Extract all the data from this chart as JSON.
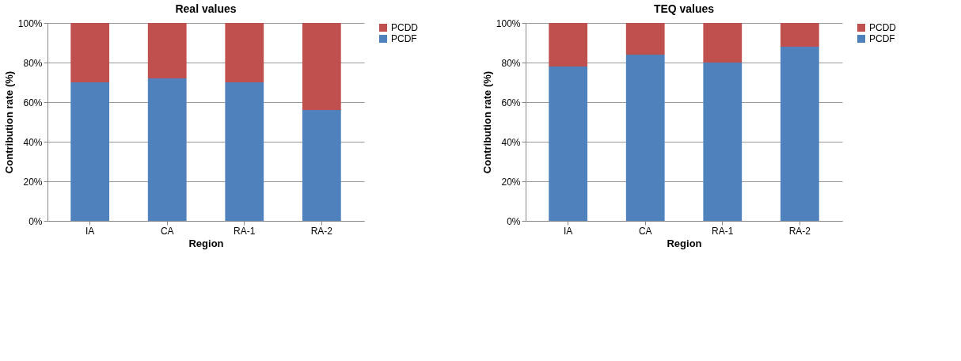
{
  "chart_data": [
    {
      "type": "bar",
      "title": "Real values",
      "xlabel": "Region",
      "ylabel": "Contribution rate (%)",
      "categories": [
        "IA",
        "CA",
        "RA-1",
        "RA-2"
      ],
      "stacked": true,
      "series": [
        {
          "name": "PCDF",
          "color": "#4f81bd",
          "values": [
            70,
            72,
            70,
            56
          ]
        },
        {
          "name": "PCDD",
          "color": "#c0504d",
          "values": [
            30,
            28,
            30,
            44
          ]
        }
      ],
      "ylim": [
        0,
        100
      ],
      "yticks": [
        {
          "value": 0,
          "label": "0%"
        },
        {
          "value": 20,
          "label": "20%"
        },
        {
          "value": 40,
          "label": "40%"
        },
        {
          "value": 60,
          "label": "60%"
        },
        {
          "value": 80,
          "label": "80%"
        },
        {
          "value": 100,
          "label": "100%"
        }
      ],
      "grid": "y",
      "legend": "right"
    },
    {
      "type": "bar",
      "title": "TEQ values",
      "xlabel": "Region",
      "ylabel": "Contribution rate (%)",
      "categories": [
        "IA",
        "CA",
        "RA-1",
        "RA-2"
      ],
      "stacked": true,
      "series": [
        {
          "name": "PCDF",
          "color": "#4f81bd",
          "values": [
            78,
            84,
            80,
            88
          ]
        },
        {
          "name": "PCDD",
          "color": "#c0504d",
          "values": [
            22,
            16,
            20,
            12
          ]
        }
      ],
      "ylim": [
        0,
        100
      ],
      "yticks": [
        {
          "value": 0,
          "label": "0%"
        },
        {
          "value": 20,
          "label": "20%"
        },
        {
          "value": 40,
          "label": "40%"
        },
        {
          "value": 60,
          "label": "60%"
        },
        {
          "value": 80,
          "label": "80%"
        },
        {
          "value": 100,
          "label": "100%"
        }
      ],
      "grid": "y",
      "legend": "right"
    }
  ]
}
